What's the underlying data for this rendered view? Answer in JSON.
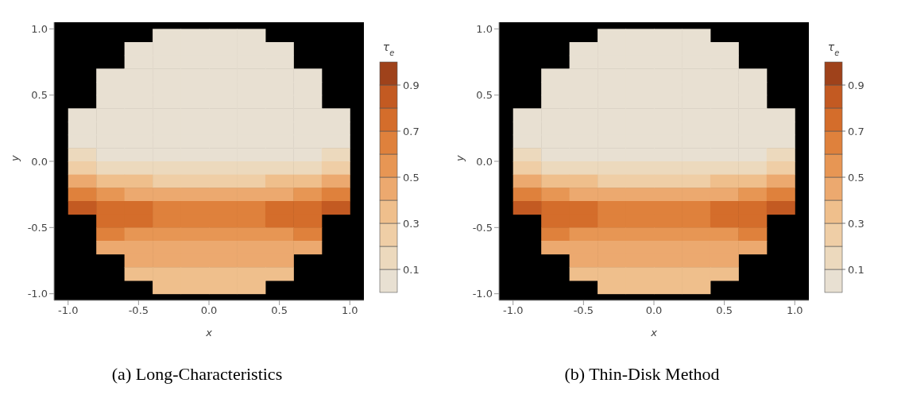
{
  "chart_data": [
    {
      "type": "scatter",
      "title": "(a) Long-Characteristics",
      "xlabel": "x",
      "ylabel": "y",
      "clabel": "τ$_{e}$",
      "xlim": [
        -1.1,
        1.1
      ],
      "ylim": [
        -1.05,
        1.05
      ],
      "xticks": [
        {
          "value": -1,
          "label": "-1.0"
        },
        {
          "value": -0.5,
          "label": "-0.5"
        },
        {
          "value": 0,
          "label": "0.0"
        },
        {
          "value": 0.5,
          "label": "0.5"
        },
        {
          "value": 1,
          "label": "1.0"
        }
      ],
      "yticks": [
        {
          "value": -1,
          "label": "-1.0"
        },
        {
          "value": -0.5,
          "label": "-0.5"
        },
        {
          "value": 0,
          "label": "0.0"
        },
        {
          "value": 0.5,
          "label": "0.5"
        },
        {
          "value": 1,
          "label": "1.0"
        }
      ],
      "clim": [
        0,
        1
      ],
      "cticks": [
        0.1,
        0.3,
        0.5,
        0.7,
        0.9
      ],
      "x": [
        -0.3,
        -0.1,
        0.1,
        0.3,
        -0.5,
        -0.3,
        -0.1,
        0.1,
        0.3,
        0.5,
        -0.5,
        -0.3,
        -0.1,
        0.1,
        0.3,
        0.5,
        -0.7,
        -0.5,
        -0.3,
        -0.1,
        0.1,
        0.3,
        0.5,
        0.7,
        -0.7,
        -0.5,
        -0.3,
        -0.1,
        0.1,
        0.3,
        0.5,
        0.7,
        -0.7,
        -0.5,
        -0.3,
        -0.1,
        0.1,
        0.3,
        0.5,
        0.7,
        -0.9,
        -0.7,
        -0.5,
        -0.3,
        -0.1,
        0.1,
        0.3,
        0.5,
        0.7,
        0.9,
        -0.9,
        -0.7,
        -0.5,
        -0.3,
        -0.1,
        0.1,
        0.3,
        0.5,
        0.7,
        0.9,
        -0.9,
        -0.7,
        -0.5,
        -0.3,
        -0.1,
        0.1,
        0.3,
        0.5,
        0.7,
        0.9,
        -0.9,
        -0.7,
        -0.5,
        -0.3,
        -0.1,
        0.1,
        0.3,
        0.5,
        0.7,
        0.9,
        -0.9,
        -0.7,
        -0.5,
        -0.3,
        -0.1,
        0.1,
        0.3,
        0.5,
        0.7,
        0.9,
        -0.9,
        -0.7,
        -0.5,
        -0.3,
        -0.1,
        0.1,
        0.3,
        0.5,
        0.7,
        0.9,
        -0.9,
        -0.7,
        -0.5,
        -0.3,
        -0.1,
        0.1,
        0.3,
        0.5,
        0.7,
        0.9,
        -0.9,
        -0.7,
        -0.5,
        -0.3,
        -0.1,
        0.1,
        0.3,
        0.5,
        0.7,
        0.9,
        -0.7,
        -0.5,
        -0.3,
        -0.1,
        0.1,
        0.3,
        0.5,
        0.7,
        -0.7,
        -0.5,
        -0.3,
        -0.1,
        0.1,
        0.3,
        0.5,
        0.7,
        -0.7,
        -0.5,
        -0.3,
        -0.1,
        0.1,
        0.3,
        0.5,
        0.7,
        -0.5,
        -0.3,
        -0.1,
        0.1,
        0.3,
        0.5,
        -0.5,
        -0.3,
        -0.1,
        0.1,
        0.3,
        0.5,
        -0.3,
        -0.1,
        0.1,
        0.3
      ],
      "values": [
        0.95,
        0.95,
        0.95,
        0.95,
        0.85,
        0.85,
        0.85,
        0.85,
        0.85,
        0.85,
        0.75,
        0.75,
        0.75,
        0.75,
        0.75,
        0.75,
        0.65,
        0.65,
        0.65,
        0.65,
        0.65,
        0.65,
        0.65,
        0.65,
        0.55,
        0.55,
        0.55,
        0.55,
        0.55,
        0.55,
        0.55,
        0.55,
        0.45,
        0.45,
        0.45,
        0.45,
        0.45,
        0.45,
        0.45,
        0.45,
        0.35,
        0.35,
        0.35,
        0.35,
        0.35,
        0.35,
        0.35,
        0.35,
        0.35,
        0.35,
        0.25,
        0.25,
        0.25,
        0.25,
        0.25,
        0.25,
        0.25,
        0.25,
        0.25,
        0.25,
        0.15,
        0.15,
        0.15,
        0.15,
        0.15,
        0.15,
        0.15,
        0.15,
        0.15,
        0.15,
        0.05,
        0.05,
        0.05,
        0.05,
        0.05,
        0.05,
        0.05,
        0.05,
        0.05,
        0.05,
        -0.05,
        -0.05,
        -0.05,
        -0.05,
        -0.05,
        -0.05,
        -0.05,
        -0.05,
        -0.05,
        -0.05,
        -0.15,
        -0.15,
        -0.15,
        -0.15,
        -0.15,
        -0.15,
        -0.15,
        -0.15,
        -0.15,
        -0.15,
        -0.25,
        -0.25,
        -0.25,
        -0.25,
        -0.25,
        -0.25,
        -0.25,
        -0.25,
        -0.25,
        -0.25,
        -0.35,
        -0.35,
        -0.35,
        -0.35,
        -0.35,
        -0.35,
        -0.35,
        -0.35,
        -0.35,
        -0.35,
        -0.45,
        -0.45,
        -0.45,
        -0.45,
        -0.45,
        -0.45,
        -0.45,
        -0.45,
        -0.55,
        -0.55,
        -0.55,
        -0.55,
        -0.55,
        -0.55,
        -0.55,
        -0.55,
        -0.65,
        -0.65,
        -0.65,
        -0.65,
        -0.65,
        -0.65,
        -0.65,
        -0.65,
        -0.75,
        -0.75,
        -0.75,
        -0.75,
        -0.75,
        -0.75,
        -0.85,
        -0.85,
        -0.85,
        -0.85,
        -0.85,
        -0.85,
        -0.95,
        -0.95,
        -0.95,
        -0.95
      ],
      "cvalues": [
        0.05,
        0.05,
        0.05,
        0.05,
        0.05,
        0.05,
        0.05,
        0.05,
        0.05,
        0.05,
        0.05,
        0.05,
        0.05,
        0.05,
        0.05,
        0.05,
        0.05,
        0.05,
        0.05,
        0.05,
        0.05,
        0.05,
        0.05,
        0.05,
        0.05,
        0.05,
        0.05,
        0.05,
        0.05,
        0.05,
        0.05,
        0.05,
        0.05,
        0.05,
        0.05,
        0.05,
        0.05,
        0.05,
        0.05,
        0.05,
        0.05,
        0.05,
        0.05,
        0.05,
        0.05,
        0.05,
        0.05,
        0.05,
        0.05,
        0.05,
        0.05,
        0.05,
        0.05,
        0.05,
        0.05,
        0.05,
        0.05,
        0.05,
        0.05,
        0.05,
        0.05,
        0.05,
        0.05,
        0.05,
        0.05,
        0.05,
        0.05,
        0.05,
        0.05,
        0.05,
        0.15,
        0.05,
        0.05,
        0.05,
        0.05,
        0.05,
        0.05,
        0.05,
        0.05,
        0.15,
        0.25,
        0.15,
        0.15,
        0.15,
        0.15,
        0.15,
        0.15,
        0.15,
        0.15,
        0.25,
        0.45,
        0.35,
        0.35,
        0.25,
        0.25,
        0.25,
        0.25,
        0.35,
        0.35,
        0.45,
        0.65,
        0.55,
        0.45,
        0.45,
        0.45,
        0.45,
        0.45,
        0.45,
        0.55,
        0.65,
        0.85,
        0.75,
        0.75,
        0.65,
        0.65,
        0.65,
        0.65,
        0.75,
        0.75,
        0.85,
        0.75,
        0.75,
        0.65,
        0.65,
        0.65,
        0.65,
        0.75,
        0.75,
        0.65,
        0.55,
        0.55,
        0.55,
        0.55,
        0.55,
        0.55,
        0.65,
        0.45,
        0.45,
        0.45,
        0.45,
        0.45,
        0.45,
        0.45,
        0.45,
        0.45,
        0.45,
        0.45,
        0.45,
        0.45,
        0.45,
        0.35,
        0.35,
        0.35,
        0.35,
        0.35,
        0.35,
        0.35,
        0.35,
        0.35,
        0.35
      ]
    },
    {
      "type": "scatter",
      "title": "(b) Thin-Disk Method",
      "xlabel": "x",
      "ylabel": "y",
      "clabel": "τ$_{e}$",
      "xlim": [
        -1.1,
        1.1
      ],
      "ylim": [
        -1.05,
        1.05
      ],
      "xticks": [
        {
          "value": -1,
          "label": "-1.0"
        },
        {
          "value": -0.5,
          "label": "-0.5"
        },
        {
          "value": 0,
          "label": "0.0"
        },
        {
          "value": 0.5,
          "label": "0.5"
        },
        {
          "value": 1,
          "label": "1.0"
        }
      ],
      "yticks": [
        {
          "value": -1,
          "label": "-1.0"
        },
        {
          "value": -0.5,
          "label": "-0.5"
        },
        {
          "value": 0,
          "label": "0.0"
        },
        {
          "value": 0.5,
          "label": "0.5"
        },
        {
          "value": 1,
          "label": "1.0"
        }
      ],
      "clim": [
        0,
        1
      ],
      "cticks": [
        0.1,
        0.3,
        0.5,
        0.7,
        0.9
      ],
      "x": [
        -0.3,
        -0.1,
        0.1,
        0.3,
        -0.5,
        -0.3,
        -0.1,
        0.1,
        0.3,
        0.5,
        -0.5,
        -0.3,
        -0.1,
        0.1,
        0.3,
        0.5,
        -0.7,
        -0.5,
        -0.3,
        -0.1,
        0.1,
        0.3,
        0.5,
        0.7,
        -0.7,
        -0.5,
        -0.3,
        -0.1,
        0.1,
        0.3,
        0.5,
        0.7,
        -0.7,
        -0.5,
        -0.3,
        -0.1,
        0.1,
        0.3,
        0.5,
        0.7,
        -0.9,
        -0.7,
        -0.5,
        -0.3,
        -0.1,
        0.1,
        0.3,
        0.5,
        0.7,
        0.9,
        -0.9,
        -0.7,
        -0.5,
        -0.3,
        -0.1,
        0.1,
        0.3,
        0.5,
        0.7,
        0.9,
        -0.9,
        -0.7,
        -0.5,
        -0.3,
        -0.1,
        0.1,
        0.3,
        0.5,
        0.7,
        0.9,
        -0.9,
        -0.7,
        -0.5,
        -0.3,
        -0.1,
        0.1,
        0.3,
        0.5,
        0.7,
        0.9,
        -0.9,
        -0.7,
        -0.5,
        -0.3,
        -0.1,
        0.1,
        0.3,
        0.5,
        0.7,
        0.9,
        -0.9,
        -0.7,
        -0.5,
        -0.3,
        -0.1,
        0.1,
        0.3,
        0.5,
        0.7,
        0.9,
        -0.9,
        -0.7,
        -0.5,
        -0.3,
        -0.1,
        0.1,
        0.3,
        0.5,
        0.7,
        0.9,
        -0.9,
        -0.7,
        -0.5,
        -0.3,
        -0.1,
        0.1,
        0.3,
        0.5,
        0.7,
        0.9,
        -0.7,
        -0.5,
        -0.3,
        -0.1,
        0.1,
        0.3,
        0.5,
        0.7,
        -0.7,
        -0.5,
        -0.3,
        -0.1,
        0.1,
        0.3,
        0.5,
        0.7,
        -0.7,
        -0.5,
        -0.3,
        -0.1,
        0.1,
        0.3,
        0.5,
        0.7,
        -0.5,
        -0.3,
        -0.1,
        0.1,
        0.3,
        0.5,
        -0.5,
        -0.3,
        -0.1,
        0.1,
        0.3,
        0.5,
        -0.3,
        -0.1,
        0.1,
        0.3
      ],
      "values": [
        0.95,
        0.95,
        0.95,
        0.95,
        0.85,
        0.85,
        0.85,
        0.85,
        0.85,
        0.85,
        0.75,
        0.75,
        0.75,
        0.75,
        0.75,
        0.75,
        0.65,
        0.65,
        0.65,
        0.65,
        0.65,
        0.65,
        0.65,
        0.65,
        0.55,
        0.55,
        0.55,
        0.55,
        0.55,
        0.55,
        0.55,
        0.55,
        0.45,
        0.45,
        0.45,
        0.45,
        0.45,
        0.45,
        0.45,
        0.45,
        0.35,
        0.35,
        0.35,
        0.35,
        0.35,
        0.35,
        0.35,
        0.35,
        0.35,
        0.35,
        0.25,
        0.25,
        0.25,
        0.25,
        0.25,
        0.25,
        0.25,
        0.25,
        0.25,
        0.25,
        0.15,
        0.15,
        0.15,
        0.15,
        0.15,
        0.15,
        0.15,
        0.15,
        0.15,
        0.15,
        0.05,
        0.05,
        0.05,
        0.05,
        0.05,
        0.05,
        0.05,
        0.05,
        0.05,
        0.05,
        -0.05,
        -0.05,
        -0.05,
        -0.05,
        -0.05,
        -0.05,
        -0.05,
        -0.05,
        -0.05,
        -0.05,
        -0.15,
        -0.15,
        -0.15,
        -0.15,
        -0.15,
        -0.15,
        -0.15,
        -0.15,
        -0.15,
        -0.15,
        -0.25,
        -0.25,
        -0.25,
        -0.25,
        -0.25,
        -0.25,
        -0.25,
        -0.25,
        -0.25,
        -0.25,
        -0.35,
        -0.35,
        -0.35,
        -0.35,
        -0.35,
        -0.35,
        -0.35,
        -0.35,
        -0.35,
        -0.35,
        -0.45,
        -0.45,
        -0.45,
        -0.45,
        -0.45,
        -0.45,
        -0.45,
        -0.45,
        -0.55,
        -0.55,
        -0.55,
        -0.55,
        -0.55,
        -0.55,
        -0.55,
        -0.55,
        -0.65,
        -0.65,
        -0.65,
        -0.65,
        -0.65,
        -0.65,
        -0.65,
        -0.65,
        -0.75,
        -0.75,
        -0.75,
        -0.75,
        -0.75,
        -0.75,
        -0.85,
        -0.85,
        -0.85,
        -0.85,
        -0.85,
        -0.85,
        -0.95,
        -0.95,
        -0.95,
        -0.95
      ],
      "cvalues": [
        0.05,
        0.05,
        0.05,
        0.05,
        0.05,
        0.05,
        0.05,
        0.05,
        0.05,
        0.05,
        0.05,
        0.05,
        0.05,
        0.05,
        0.05,
        0.05,
        0.05,
        0.05,
        0.05,
        0.05,
        0.05,
        0.05,
        0.05,
        0.05,
        0.05,
        0.05,
        0.05,
        0.05,
        0.05,
        0.05,
        0.05,
        0.05,
        0.05,
        0.05,
        0.05,
        0.05,
        0.05,
        0.05,
        0.05,
        0.05,
        0.05,
        0.05,
        0.05,
        0.05,
        0.05,
        0.05,
        0.05,
        0.05,
        0.05,
        0.05,
        0.05,
        0.05,
        0.05,
        0.05,
        0.05,
        0.05,
        0.05,
        0.05,
        0.05,
        0.05,
        0.05,
        0.05,
        0.05,
        0.05,
        0.05,
        0.05,
        0.05,
        0.05,
        0.05,
        0.05,
        0.15,
        0.05,
        0.05,
        0.05,
        0.05,
        0.05,
        0.05,
        0.05,
        0.05,
        0.15,
        0.25,
        0.15,
        0.15,
        0.15,
        0.15,
        0.15,
        0.15,
        0.15,
        0.15,
        0.25,
        0.45,
        0.35,
        0.35,
        0.25,
        0.25,
        0.25,
        0.25,
        0.35,
        0.35,
        0.45,
        0.65,
        0.55,
        0.45,
        0.45,
        0.45,
        0.45,
        0.45,
        0.45,
        0.55,
        0.65,
        0.85,
        0.75,
        0.75,
        0.65,
        0.65,
        0.65,
        0.65,
        0.75,
        0.75,
        0.85,
        0.75,
        0.75,
        0.65,
        0.65,
        0.65,
        0.65,
        0.75,
        0.75,
        0.65,
        0.55,
        0.55,
        0.55,
        0.55,
        0.55,
        0.55,
        0.65,
        0.45,
        0.45,
        0.45,
        0.45,
        0.45,
        0.45,
        0.45,
        0.45,
        0.45,
        0.45,
        0.45,
        0.45,
        0.45,
        0.45,
        0.35,
        0.35,
        0.35,
        0.35,
        0.35,
        0.35,
        0.35,
        0.35,
        0.35,
        0.35
      ]
    }
  ]
}
